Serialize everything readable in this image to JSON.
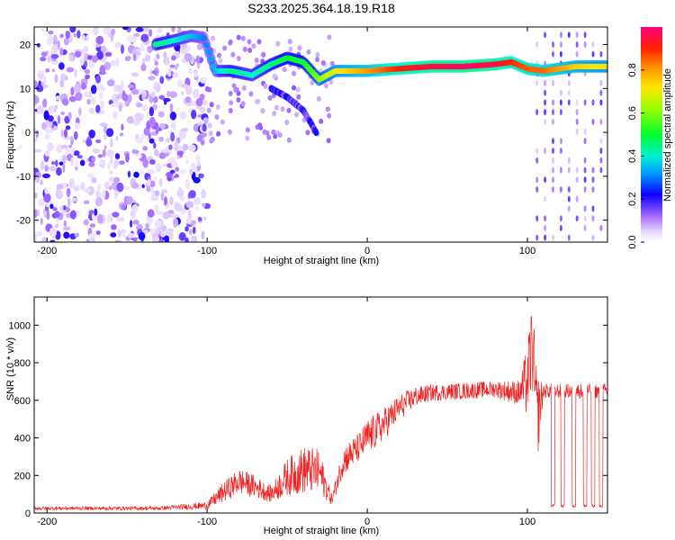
{
  "title": "S233.2025.364.18.19.R18",
  "chart_data": [
    {
      "type": "heatmap",
      "name": "spectrogram",
      "xlabel": "Height of straight line (km)",
      "ylabel": "Frequency (Hz)",
      "xlim": [
        -208,
        150
      ],
      "ylim": [
        -25,
        24
      ],
      "xticks": [
        -200,
        -100,
        0,
        100
      ],
      "yticks": [
        -20,
        -10,
        0,
        10,
        20
      ],
      "colorbar": {
        "label": "Normalized spectral amplitude",
        "range": [
          0,
          1
        ],
        "ticks": [
          "0.0",
          "0.2",
          "0.4",
          "0.6",
          "0.8"
        ],
        "tick_values": [
          0.0,
          0.2,
          0.4,
          0.6,
          0.8
        ]
      },
      "features": {
        "noise_region_km": [
          -208,
          -100
        ],
        "carrier_trace": [
          {
            "x": -132,
            "f": 20,
            "a": 0.45
          },
          {
            "x": -120,
            "f": 21,
            "a": 0.4
          },
          {
            "x": -110,
            "f": 22,
            "a": 0.35
          },
          {
            "x": -102,
            "f": 21.5,
            "a": 0.3
          },
          {
            "x": -95,
            "f": 14,
            "a": 0.35
          },
          {
            "x": -85,
            "f": 14,
            "a": 0.45
          },
          {
            "x": -72,
            "f": 13,
            "a": 0.4
          },
          {
            "x": -60,
            "f": 15.5,
            "a": 0.45
          },
          {
            "x": -50,
            "f": 17,
            "a": 0.5
          },
          {
            "x": -40,
            "f": 16,
            "a": 0.5
          },
          {
            "x": -30,
            "f": 12,
            "a": 0.6
          },
          {
            "x": -20,
            "f": 14,
            "a": 0.7
          },
          {
            "x": -10,
            "f": 14,
            "a": 0.75
          },
          {
            "x": 0,
            "f": 14,
            "a": 0.8
          },
          {
            "x": 20,
            "f": 14.5,
            "a": 0.9
          },
          {
            "x": 40,
            "f": 15,
            "a": 0.95
          },
          {
            "x": 60,
            "f": 15,
            "a": 0.98
          },
          {
            "x": 80,
            "f": 15.5,
            "a": 0.95
          },
          {
            "x": 90,
            "f": 16,
            "a": 0.9
          },
          {
            "x": 100,
            "f": 14.5,
            "a": 0.85
          },
          {
            "x": 110,
            "f": 14,
            "a": 0.85
          },
          {
            "x": 130,
            "f": 15,
            "a": 0.75
          },
          {
            "x": 150,
            "f": 15,
            "a": 0.7
          }
        ],
        "descending_branch": [
          {
            "x": -60,
            "f": 10
          },
          {
            "x": -50,
            "f": 8
          },
          {
            "x": -40,
            "f": 5
          },
          {
            "x": -35,
            "f": 2
          },
          {
            "x": -32,
            "f": 0
          }
        ],
        "right_banding_km": [
          100,
          150
        ]
      }
    },
    {
      "type": "line",
      "name": "snr",
      "xlabel": "Height of straight line (km)",
      "ylabel": "SNR (10 * v/v)",
      "xlim": [
        -208,
        150
      ],
      "ylim": [
        0,
        1150
      ],
      "xticks": [
        -200,
        -100,
        0,
        100
      ],
      "yticks": [
        0,
        200,
        400,
        600,
        800,
        1000
      ],
      "color": "#ee2222",
      "profile": [
        {
          "x": -208,
          "y": 25,
          "noise": 18
        },
        {
          "x": -130,
          "y": 25,
          "noise": 20
        },
        {
          "x": -100,
          "y": 40,
          "noise": 40
        },
        {
          "x": -90,
          "y": 110,
          "noise": 110
        },
        {
          "x": -80,
          "y": 170,
          "noise": 140
        },
        {
          "x": -70,
          "y": 140,
          "noise": 120
        },
        {
          "x": -60,
          "y": 100,
          "noise": 90
        },
        {
          "x": -50,
          "y": 190,
          "noise": 200
        },
        {
          "x": -40,
          "y": 230,
          "noise": 260
        },
        {
          "x": -30,
          "y": 220,
          "noise": 240
        },
        {
          "x": -22,
          "y": 70,
          "noise": 60
        },
        {
          "x": -15,
          "y": 280,
          "noise": 160
        },
        {
          "x": -5,
          "y": 350,
          "noise": 160
        },
        {
          "x": 0,
          "y": 400,
          "noise": 200
        },
        {
          "x": 10,
          "y": 470,
          "noise": 180
        },
        {
          "x": 20,
          "y": 560,
          "noise": 140
        },
        {
          "x": 30,
          "y": 620,
          "noise": 110
        },
        {
          "x": 40,
          "y": 640,
          "noise": 90
        },
        {
          "x": 60,
          "y": 650,
          "noise": 90
        },
        {
          "x": 80,
          "y": 660,
          "noise": 90
        },
        {
          "x": 95,
          "y": 640,
          "noise": 140
        },
        {
          "x": 100,
          "y": 700,
          "noise": 400
        },
        {
          "x": 103,
          "y": 900,
          "noise": 500
        },
        {
          "x": 106,
          "y": 500,
          "noise": 500
        },
        {
          "x": 110,
          "y": 650,
          "noise": 80
        },
        {
          "x": 150,
          "y": 650,
          "noise": 80
        }
      ],
      "dropouts_km": [
        116,
        122,
        129,
        136,
        141,
        146
      ],
      "dropout_value": 30
    }
  ]
}
